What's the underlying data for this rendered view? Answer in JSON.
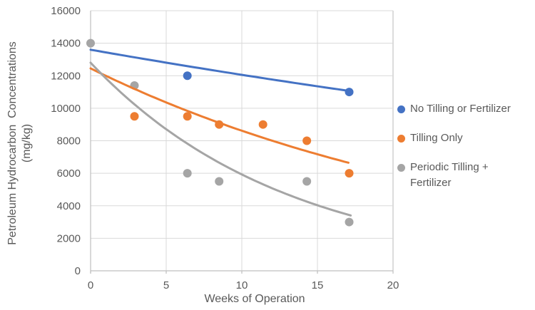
{
  "chart_data": {
    "type": "scatter",
    "title": "",
    "xlabel": "Weeks of Operation",
    "ylabel": "Petroleum Hydrocarbon  Concentrations\n(mg/kg)",
    "xlim": [
      0,
      20
    ],
    "ylim": [
      0,
      16000
    ],
    "x_ticks": [
      0,
      5,
      10,
      15,
      20
    ],
    "y_ticks": [
      0,
      2000,
      4000,
      6000,
      8000,
      10000,
      12000,
      14000,
      16000
    ],
    "grid": true,
    "legend_position": "right",
    "marker_radius": 6,
    "trend_width": 3,
    "series": [
      {
        "name": "No Tilling or Fertilizer",
        "color": "#4472C4",
        "points": [
          [
            6.4,
            12000
          ],
          [
            17.1,
            11000
          ]
        ],
        "trendline": {
          "type": "exponential",
          "a": 13600,
          "b": -0.01206,
          "x_start": 0,
          "x_end": 17.2
        }
      },
      {
        "name": "Tilling Only",
        "color": "#ED7D31",
        "points": [
          [
            2.9,
            9500
          ],
          [
            6.4,
            9500
          ],
          [
            8.5,
            9000
          ],
          [
            11.4,
            9000
          ],
          [
            14.3,
            8000
          ],
          [
            17.1,
            6000
          ]
        ],
        "trendline": {
          "type": "exponential",
          "a": 12450,
          "b": -0.0368,
          "x_start": 0,
          "x_end": 17.05
        }
      },
      {
        "name": "Periodic Tilling + Fertilizer",
        "color": "#A5A5A5",
        "points": [
          [
            0,
            14000
          ],
          [
            2.9,
            11400
          ],
          [
            6.4,
            6000
          ],
          [
            8.5,
            5500
          ],
          [
            14.3,
            5500
          ],
          [
            17.1,
            3000
          ]
        ],
        "trendline": {
          "type": "exponential",
          "a": 12800,
          "b": -0.077,
          "x_start": 0,
          "x_end": 17.2
        }
      }
    ],
    "style_colors": {
      "gridline": "#D9D9D9",
      "axis_line": "#BFBFBF",
      "tick_mark": "#BFBFBF",
      "text": "#595959",
      "background": "#FFFFFF"
    }
  }
}
